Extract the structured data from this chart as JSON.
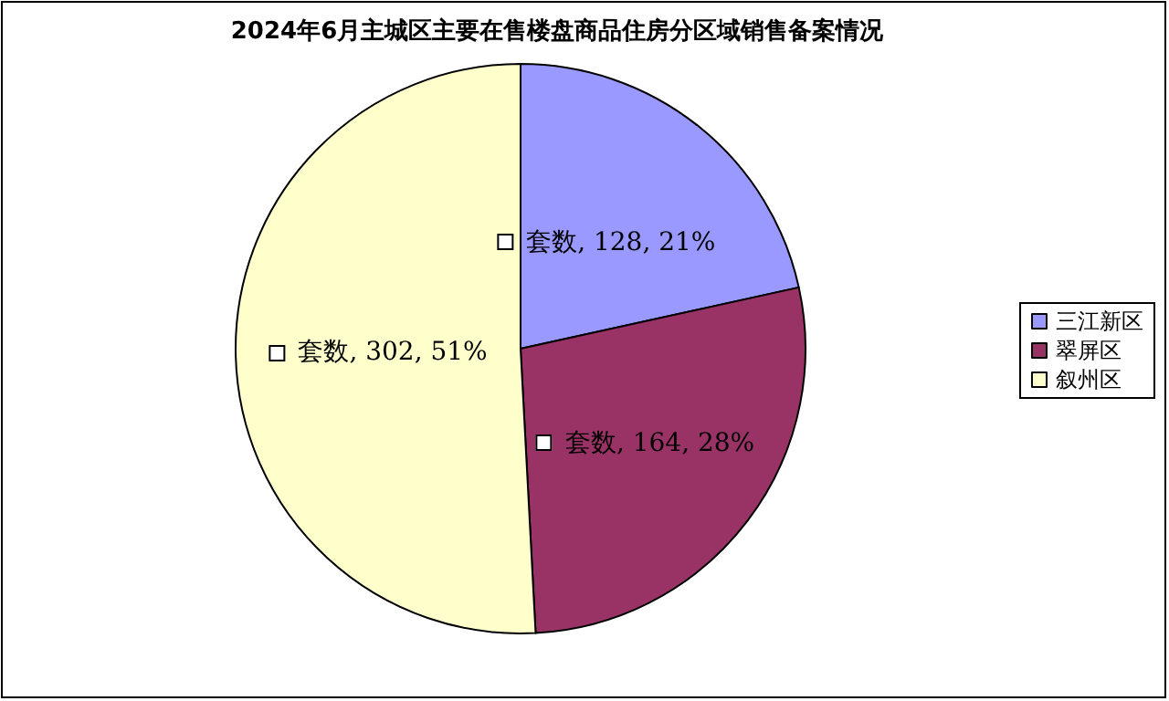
{
  "chart_data": {
    "type": "pie",
    "title": "2024年6月主城区主要在售楼盘商品住房分区域销售备案情况",
    "categories": [
      "三江新区",
      "翠屏区",
      "叙州区"
    ],
    "values": [
      128,
      164,
      302
    ],
    "colors": [
      "#9999ff",
      "#993366",
      "#ffffcc"
    ],
    "value_labels": [
      "套数, 128, 21%",
      "套数, 164, 28%",
      "套数, 302, 51%"
    ],
    "legend": "right"
  }
}
